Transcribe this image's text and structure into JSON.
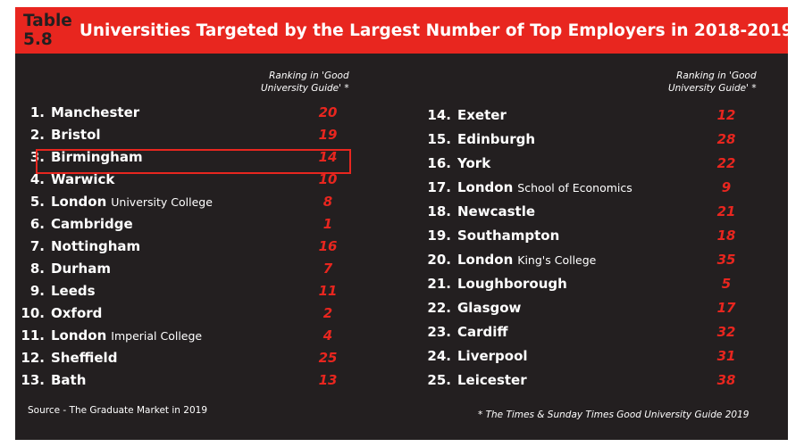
{
  "title": {
    "number": "Table 5.8",
    "text": "Universities Targeted by the Largest Number of Top Employers in 2018-2019"
  },
  "column_header": {
    "line1": "Ranking in 'Good",
    "line2": "University Guide' *"
  },
  "left_rows": [
    {
      "no": "1.",
      "name": "Manchester",
      "sub": "",
      "guide": "20"
    },
    {
      "no": "2.",
      "name": "Bristol",
      "sub": "",
      "guide": "19"
    },
    {
      "no": "3.",
      "name": "Birmingham",
      "sub": "",
      "guide": "14"
    },
    {
      "no": "4.",
      "name": "Warwick",
      "sub": "",
      "guide": "10"
    },
    {
      "no": "5.",
      "name": "London",
      "sub": "University College",
      "guide": "8"
    },
    {
      "no": "6.",
      "name": "Cambridge",
      "sub": "",
      "guide": "1"
    },
    {
      "no": "7.",
      "name": "Nottingham",
      "sub": "",
      "guide": "16"
    },
    {
      "no": "8.",
      "name": "Durham",
      "sub": "",
      "guide": "7"
    },
    {
      "no": "9.",
      "name": "Leeds",
      "sub": "",
      "guide": "11"
    },
    {
      "no": "10.",
      "name": "Oxford",
      "sub": "",
      "guide": "2"
    },
    {
      "no": "11.",
      "name": "London",
      "sub": "Imperial College",
      "guide": "4"
    },
    {
      "no": "12.",
      "name": "Sheffield",
      "sub": "",
      "guide": "25"
    },
    {
      "no": "13.",
      "name": "Bath",
      "sub": "",
      "guide": "13"
    }
  ],
  "right_rows": [
    {
      "no": "14.",
      "name": "Exeter",
      "sub": "",
      "guide": "12"
    },
    {
      "no": "15.",
      "name": "Edinburgh",
      "sub": "",
      "guide": "28"
    },
    {
      "no": "16.",
      "name": "York",
      "sub": "",
      "guide": "22"
    },
    {
      "no": "17.",
      "name": "London",
      "sub": "School of Economics",
      "guide": "9"
    },
    {
      "no": "18.",
      "name": "Newcastle",
      "sub": "",
      "guide": "21"
    },
    {
      "no": "19.",
      "name": "Southampton",
      "sub": "",
      "guide": "18"
    },
    {
      "no": "20.",
      "name": "London",
      "sub": "King's College",
      "guide": "35"
    },
    {
      "no": "21.",
      "name": "Loughborough",
      "sub": "",
      "guide": "5"
    },
    {
      "no": "22.",
      "name": "Glasgow",
      "sub": "",
      "guide": "17"
    },
    {
      "no": "23.",
      "name": "Cardiff",
      "sub": "",
      "guide": "32"
    },
    {
      "no": "24.",
      "name": "Liverpool",
      "sub": "",
      "guide": "31"
    },
    {
      "no": "25.",
      "name": "Leicester",
      "sub": "",
      "guide": "38"
    }
  ],
  "highlighted_row": "3.",
  "source": "Source - The Graduate Market in 2019",
  "footnote": "* The Times & Sunday Times Good University Guide 2019",
  "colors": {
    "background": "#231f20",
    "accent_red": "#e8261f",
    "text": "#ffffff"
  }
}
